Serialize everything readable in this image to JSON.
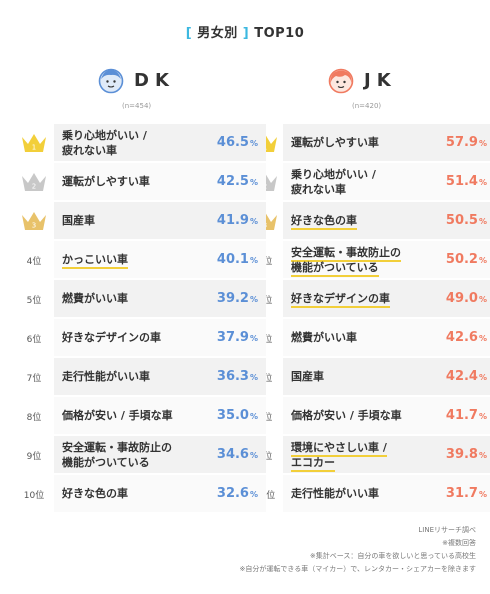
{
  "header": {
    "title_text": "男女別",
    "title_suffix": "TOP10",
    "bracket_open": "[",
    "bracket_close": "]"
  },
  "groups": [
    {
      "key": "dk",
      "name": "DK",
      "n": "(n=454)",
      "icon": "boy-face-icon"
    },
    {
      "key": "jk",
      "name": "JK",
      "n": "(n=420)",
      "icon": "girl-face-icon"
    }
  ],
  "ranks": [
    "1",
    "2",
    "3",
    "4位",
    "5位",
    "6位",
    "7位",
    "8位",
    "9位",
    "10位"
  ],
  "colors": {
    "dk_accent": "#5b8fd6",
    "jk_accent": "#f07a60",
    "gold": "#f2cf3a",
    "silver": "#c8c8c8",
    "bronze": "#e8c26a",
    "title_bracket": "#3cb8e0"
  },
  "chart_data": [
    {
      "type": "table",
      "group": "DK",
      "sample": "(n=454)",
      "unit": "%",
      "categories": [
        "乗り心地がいい／疲れない車",
        "運転がしやすい車",
        "国産車",
        "かっこいい車",
        "燃費がいい車",
        "好きなデザインの車",
        "走行性能がいい車",
        "価格が安い／手頃な車",
        "安全運転・事故防止の機能がついている",
        "好きな色の車"
      ],
      "labels": [
        "乗り心地がいい /\n疲れない車",
        "運転がしやすい車",
        "国産車",
        "かっこいい車",
        "燃費がいい車",
        "好きなデザインの車",
        "走行性能がいい車",
        "価格が安い / 手頃な車",
        "安全運転・事故防止の\n機能がついている",
        "好きな色の車"
      ],
      "values": [
        46.5,
        42.5,
        41.9,
        40.1,
        39.2,
        37.9,
        36.3,
        35.0,
        34.6,
        32.6
      ],
      "display": [
        "46.5",
        "42.5",
        "41.9",
        "40.1",
        "39.2",
        "37.9",
        "36.3",
        "35.0",
        "34.6",
        "32.6"
      ],
      "underlined": [
        false,
        false,
        false,
        true,
        false,
        false,
        false,
        false,
        false,
        false
      ]
    },
    {
      "type": "table",
      "group": "JK",
      "sample": "(n=420)",
      "unit": "%",
      "categories": [
        "運転がしやすい車",
        "乗り心地がいい／疲れない車",
        "好きな色の車",
        "安全運転・事故防止の機能がついている",
        "好きなデザインの車",
        "燃費がいい車",
        "国産車",
        "価格が安い／手頃な車",
        "環境にやさしい車／エコカー",
        "走行性能がいい車"
      ],
      "labels": [
        "運転がしやすい車",
        "乗り心地がいい /\n疲れない車",
        "好きな色の車",
        "安全運転・事故防止の\n機能がついている",
        "好きなデザインの車",
        "燃費がいい車",
        "国産車",
        "価格が安い / 手頃な車",
        "環境にやさしい車 /\nエコカー",
        "走行性能がいい車"
      ],
      "values": [
        57.9,
        51.4,
        50.5,
        50.2,
        49.0,
        42.6,
        42.4,
        41.7,
        39.8,
        31.7
      ],
      "display": [
        "57.9",
        "51.4",
        "50.5",
        "50.2",
        "49.0",
        "42.6",
        "42.4",
        "41.7",
        "39.8",
        "31.7"
      ],
      "underlined": [
        false,
        false,
        true,
        true,
        true,
        false,
        false,
        false,
        true,
        false
      ]
    }
  ],
  "notes": [
    "LINEリサーチ調べ",
    "※複数回答",
    "※集計ベース：自分の車を欲しいと思っている高校生",
    "※自分が運転できる車（マイカー）で、レンタカー・シェアカーを除きます"
  ]
}
